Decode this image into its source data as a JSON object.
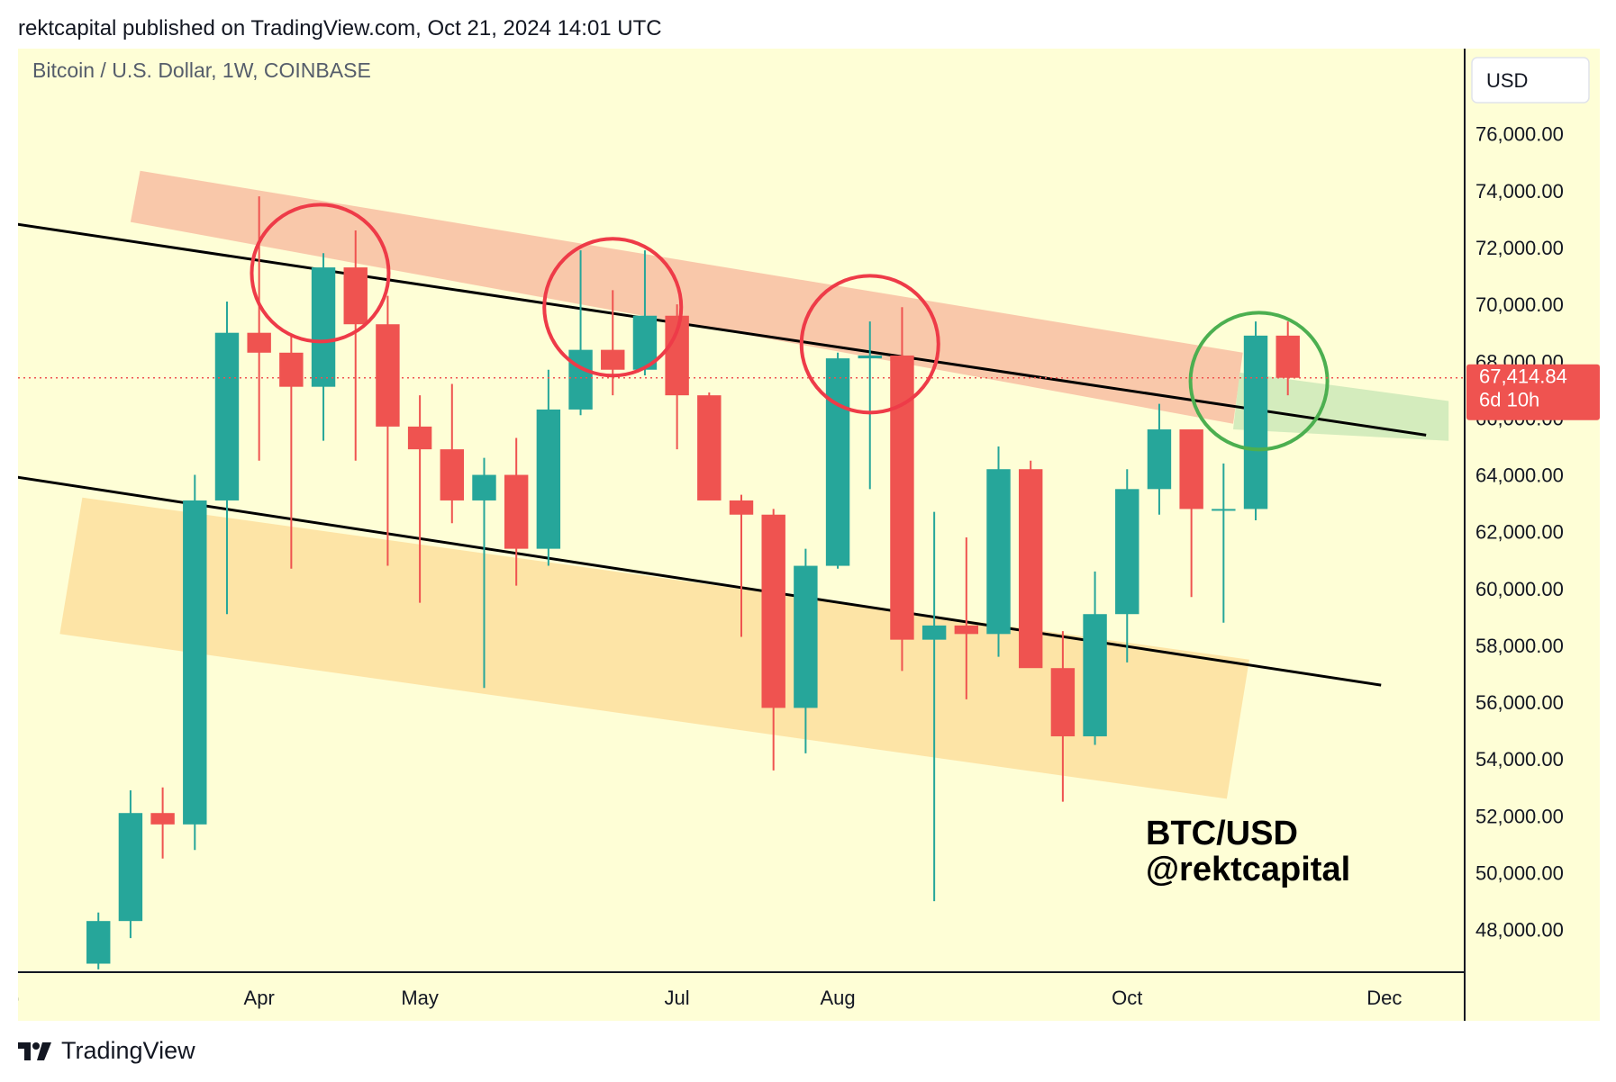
{
  "header": {
    "publisher": "rektcapital published on TradingView.com, Oct 21, 2024 14:01 UTC"
  },
  "chart": {
    "symbol_title": "Bitcoin / U.S. Dollar, 1W, COINBASE",
    "currency_button": "USD",
    "watermark_line1": "BTC/USD",
    "watermark_line2": "@rektcapital",
    "last_price_label": "67,414.84",
    "countdown_label": "6d 10h"
  },
  "footer": {
    "brand": "TradingView"
  },
  "colors": {
    "background": "#fefed6",
    "up": "#26a69a",
    "down": "#ef5350",
    "resistance_band": "#f9c5a8",
    "support_band": "#fde3a3",
    "breakout_band": "#cde9b8",
    "circle_red": "#ee3b48",
    "circle_green": "#4caf50",
    "price_line": "#ef5350"
  },
  "chart_data": {
    "type": "candlestick",
    "title": "Bitcoin / U.S. Dollar, 1W, COINBASE",
    "timeframe": "1W",
    "ylim": [
      46500,
      79000
    ],
    "y_ticks": [
      48000,
      50000,
      52000,
      54000,
      56000,
      58000,
      60000,
      62000,
      64000,
      66000,
      68000,
      70000,
      72000,
      74000,
      76000
    ],
    "y_tick_labels": [
      "48,000.00",
      "50,000.00",
      "52,000.00",
      "54,000.00",
      "56,000.00",
      "58,000.00",
      "60,000.00",
      "62,000.00",
      "64,000.00",
      "66,000.00",
      "68,000.00",
      "70,000.00",
      "72,000.00",
      "74,000.00",
      "76,000.00"
    ],
    "x_labels": [
      {
        "label": "Feb",
        "week": 0
      },
      {
        "label": "Apr",
        "week": 8
      },
      {
        "label": "May",
        "week": 13
      },
      {
        "label": "Jul",
        "week": 21
      },
      {
        "label": "Aug",
        "week": 26
      },
      {
        "label": "Oct",
        "week": 35
      },
      {
        "label": "Dec",
        "week": 43
      }
    ],
    "x_range_weeks": [
      0.5,
      45.5
    ],
    "candles": [
      {
        "week": 3,
        "o": 46800,
        "h": 48600,
        "l": 46600,
        "c": 48300
      },
      {
        "week": 4,
        "o": 48300,
        "h": 52900,
        "l": 47700,
        "c": 52100
      },
      {
        "week": 5,
        "o": 52100,
        "h": 53000,
        "l": 50500,
        "c": 51700
      },
      {
        "week": 6,
        "o": 51700,
        "h": 64000,
        "l": 50800,
        "c": 63100
      },
      {
        "week": 7,
        "o": 63100,
        "h": 70100,
        "l": 59100,
        "c": 69000
      },
      {
        "week": 8,
        "o": 69000,
        "h": 73800,
        "l": 64500,
        "c": 68300
      },
      {
        "week": 9,
        "o": 68300,
        "h": 68900,
        "l": 60700,
        "c": 67100
      },
      {
        "week": 10,
        "o": 67100,
        "h": 71800,
        "l": 65200,
        "c": 71300
      },
      {
        "week": 11,
        "o": 71300,
        "h": 72600,
        "l": 64500,
        "c": 69300
      },
      {
        "week": 12,
        "o": 69300,
        "h": 70300,
        "l": 60800,
        "c": 65700
      },
      {
        "week": 13,
        "o": 65700,
        "h": 66800,
        "l": 59500,
        "c": 64900
      },
      {
        "week": 14,
        "o": 64900,
        "h": 67200,
        "l": 62300,
        "c": 63100
      },
      {
        "week": 15,
        "o": 63100,
        "h": 64600,
        "l": 56500,
        "c": 64000
      },
      {
        "week": 16,
        "o": 64000,
        "h": 65300,
        "l": 60100,
        "c": 61400
      },
      {
        "week": 17,
        "o": 61400,
        "h": 67700,
        "l": 60800,
        "c": 66300
      },
      {
        "week": 18,
        "o": 66300,
        "h": 71900,
        "l": 66100,
        "c": 68400
      },
      {
        "week": 19,
        "o": 68400,
        "h": 70500,
        "l": 66800,
        "c": 67700
      },
      {
        "week": 20,
        "o": 67700,
        "h": 71900,
        "l": 67500,
        "c": 69600
      },
      {
        "week": 21,
        "o": 69600,
        "h": 70000,
        "l": 64900,
        "c": 66800
      },
      {
        "week": 22,
        "o": 66800,
        "h": 66900,
        "l": 63200,
        "c": 63100
      },
      {
        "week": 23,
        "o": 63100,
        "h": 63300,
        "l": 58300,
        "c": 62600
      },
      {
        "week": 24,
        "o": 62600,
        "h": 62800,
        "l": 53600,
        "c": 55800
      },
      {
        "week": 25,
        "o": 55800,
        "h": 61400,
        "l": 54200,
        "c": 60800
      },
      {
        "week": 26,
        "o": 60800,
        "h": 68300,
        "l": 60700,
        "c": 68100
      },
      {
        "week": 27,
        "o": 68100,
        "h": 69400,
        "l": 63500,
        "c": 68200
      },
      {
        "week": 28,
        "o": 68200,
        "h": 69900,
        "l": 57100,
        "c": 58200
      },
      {
        "week": 29,
        "o": 58200,
        "h": 62700,
        "l": 49000,
        "c": 58700
      },
      {
        "week": 30,
        "o": 58700,
        "h": 61800,
        "l": 56100,
        "c": 58400
      },
      {
        "week": 31,
        "o": 58400,
        "h": 65000,
        "l": 57600,
        "c": 64200
      },
      {
        "week": 32,
        "o": 64200,
        "h": 64500,
        "l": 57300,
        "c": 57200
      },
      {
        "week": 33,
        "o": 57200,
        "h": 58500,
        "l": 52500,
        "c": 54800
      },
      {
        "week": 34,
        "o": 54800,
        "h": 60600,
        "l": 54500,
        "c": 59100
      },
      {
        "week": 35,
        "o": 59100,
        "h": 64200,
        "l": 57400,
        "c": 63500
      },
      {
        "week": 36,
        "o": 63500,
        "h": 66500,
        "l": 62600,
        "c": 65600
      },
      {
        "week": 37,
        "o": 65600,
        "h": 65600,
        "l": 59700,
        "c": 62800
      },
      {
        "week": 38,
        "o": 62800,
        "h": 64400,
        "l": 58800,
        "c": 62800
      },
      {
        "week": 39,
        "o": 62800,
        "h": 69400,
        "l": 62400,
        "c": 68900
      },
      {
        "week": 40,
        "o": 68900,
        "h": 69400,
        "l": 66800,
        "c": 67414.84
      }
    ],
    "last_price": 67414.84,
    "trendlines": [
      {
        "role": "upper-channel",
        "from": {
          "week": 0,
          "price": 72900
        },
        "to": {
          "week": 44.3,
          "price": 65400
        }
      },
      {
        "role": "lower-channel",
        "from": {
          "week": 0,
          "price": 64000
        },
        "to": {
          "week": 42.9,
          "price": 56600
        }
      }
    ],
    "bands": [
      {
        "role": "resistance-zone",
        "corners": [
          {
            "week": 4.3,
            "price": 74700
          },
          {
            "week": 38.6,
            "price": 68300
          },
          {
            "week": 38.3,
            "price": 65800
          },
          {
            "week": 4.0,
            "price": 72900
          }
        ]
      },
      {
        "role": "support-zone",
        "corners": [
          {
            "week": 2.5,
            "price": 63200
          },
          {
            "week": 38.8,
            "price": 57500
          },
          {
            "week": 38.1,
            "price": 52600
          },
          {
            "week": 1.8,
            "price": 58400
          }
        ]
      },
      {
        "role": "breakout-zone",
        "corners": [
          {
            "week": 38.5,
            "price": 67600
          },
          {
            "week": 45.0,
            "price": 66600
          },
          {
            "week": 45.0,
            "price": 65200
          },
          {
            "week": 38.3,
            "price": 65600
          }
        ]
      }
    ],
    "circles": [
      {
        "color": "red",
        "week": 9.9,
        "price": 71100
      },
      {
        "color": "red",
        "week": 19.0,
        "price": 69900
      },
      {
        "color": "red",
        "week": 27.0,
        "price": 68600
      },
      {
        "color": "green",
        "week": 39.1,
        "price": 67300
      }
    ]
  }
}
